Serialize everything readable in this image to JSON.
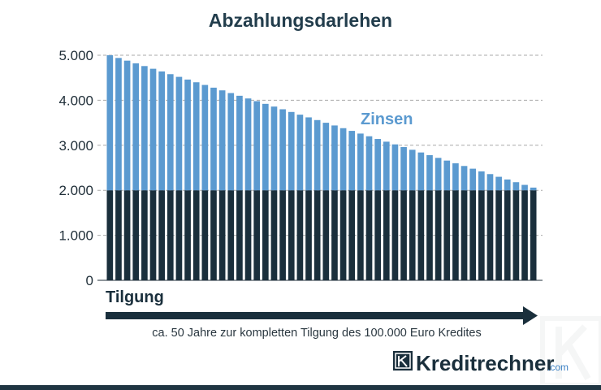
{
  "chart_data": {
    "type": "bar",
    "stacked": true,
    "title": "Abzahlungsdarlehen",
    "ylim": [
      0,
      5000
    ],
    "yticks": [
      0,
      1000,
      2000,
      3000,
      4000,
      5000
    ],
    "ytick_labels": [
      "0",
      "1.000",
      "2.000",
      "3.000",
      "4.000",
      "5.000"
    ],
    "grid": true,
    "n_bars": 50,
    "series": [
      {
        "name": "Tilgung",
        "color": "#1a2f3c",
        "values": [
          2000,
          2000,
          2000,
          2000,
          2000,
          2000,
          2000,
          2000,
          2000,
          2000,
          2000,
          2000,
          2000,
          2000,
          2000,
          2000,
          2000,
          2000,
          2000,
          2000,
          2000,
          2000,
          2000,
          2000,
          2000,
          2000,
          2000,
          2000,
          2000,
          2000,
          2000,
          2000,
          2000,
          2000,
          2000,
          2000,
          2000,
          2000,
          2000,
          2000,
          2000,
          2000,
          2000,
          2000,
          2000,
          2000,
          2000,
          2000,
          2000,
          2000
        ]
      },
      {
        "name": "Zinsen",
        "color": "#5b9ad0",
        "values": [
          3000,
          2940,
          2880,
          2820,
          2760,
          2700,
          2640,
          2580,
          2520,
          2460,
          2400,
          2340,
          2280,
          2220,
          2160,
          2100,
          2040,
          1980,
          1920,
          1860,
          1800,
          1740,
          1680,
          1620,
          1560,
          1500,
          1440,
          1380,
          1320,
          1260,
          1200,
          1140,
          1080,
          1020,
          960,
          900,
          840,
          780,
          720,
          660,
          600,
          540,
          480,
          420,
          360,
          300,
          240,
          180,
          120,
          60
        ]
      }
    ],
    "annotations": {
      "zinsen": "Zinsen",
      "tilgung": "Tilgung",
      "caption": "ca. 50 Jahre zur kompletten Tilgung des 100.000 Euro Kredites"
    }
  },
  "brand": {
    "name": "Kreditrechner",
    "tld": ".com",
    "logo_letter": "K",
    "logo_icon": "kreditrechner-logo-icon",
    "watermark_icon": "kreditrechner-watermark-icon",
    "primary_color": "#1a2f3c",
    "accent_color": "#3d82c4"
  }
}
